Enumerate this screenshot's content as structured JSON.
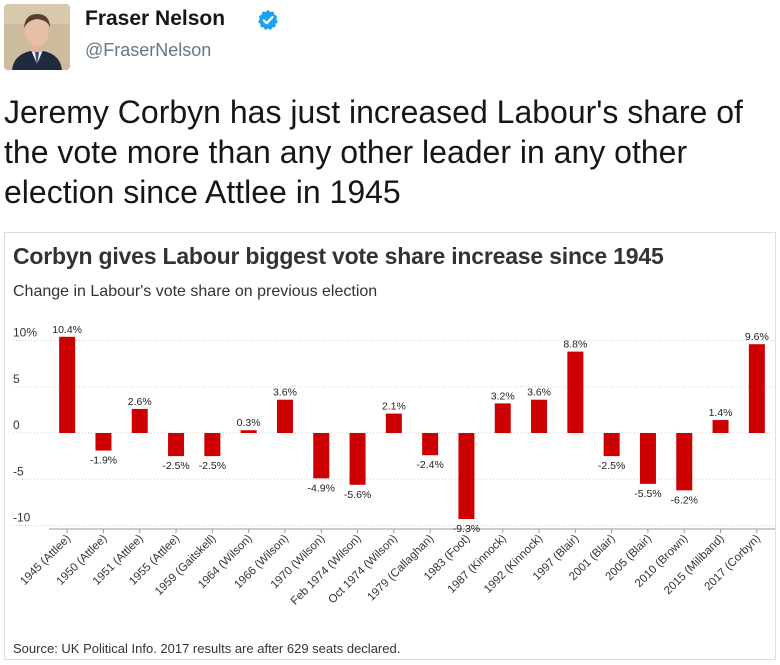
{
  "tweet": {
    "display_name": "Fraser Nelson",
    "handle": "@FraserNelson",
    "text": "Jeremy Corbyn has just increased Labour's share of the vote more than any other leader in any other election since Attlee in 1945",
    "verified_icon": "verified-badge-icon",
    "colors": {
      "verified": "#1da1f2",
      "handle": "#657786"
    }
  },
  "chart_data": {
    "type": "bar",
    "title": "Corbyn gives Labour biggest vote share increase since 1945",
    "subtitle": "Change in Labour's vote share on previous election",
    "source": "Source: UK Political Info. 2017 results are after 629 seats declared.",
    "categories": [
      "1945 (Attlee)",
      "1950 (Attlee)",
      "1951 (Attlee)",
      "1955 (Attlee)",
      "1959 (Gaitskell)",
      "1964 (Wilson)",
      "1966 (Wilson)",
      "1970 (Wilson)",
      "Feb 1974 (Wilson)",
      "Oct 1974 (Wilson)",
      "1979 (Callaghan)",
      "1983 (Foot)",
      "1987 (Kinnock)",
      "1992 (Kinnock)",
      "1997 (Blair)",
      "2001 (Blair)",
      "2005 (Blair)",
      "2010 (Brown)",
      "2015 (Miliband)",
      "2017 (Corbyn)"
    ],
    "values": [
      10.4,
      -1.9,
      2.6,
      -2.5,
      -2.5,
      0.3,
      3.6,
      -4.9,
      -5.6,
      2.1,
      -2.4,
      -9.3,
      3.2,
      3.6,
      8.8,
      -2.5,
      -5.5,
      -6.2,
      1.4,
      9.6
    ],
    "value_labels": [
      "10.4%",
      "-1.9%",
      "2.6%",
      "-2.5%",
      "-2.5%",
      "0.3%",
      "3.6%",
      "-4.9%",
      "-5.6%",
      "2.1%",
      "-2.4%",
      "-9.3%",
      "3.2%",
      "3.6%",
      "8.8%",
      "-2.5%",
      "-5.5%",
      "-6.2%",
      "1.4%",
      "9.6%"
    ],
    "y_ticks": [
      10,
      5,
      0,
      -5,
      -10
    ],
    "y_tick_labels": [
      "10%",
      "5",
      "0",
      "-5",
      "-10"
    ],
    "ylim": [
      -10.4,
      10.4
    ],
    "grid": true,
    "bar_color": "#cc0000"
  }
}
